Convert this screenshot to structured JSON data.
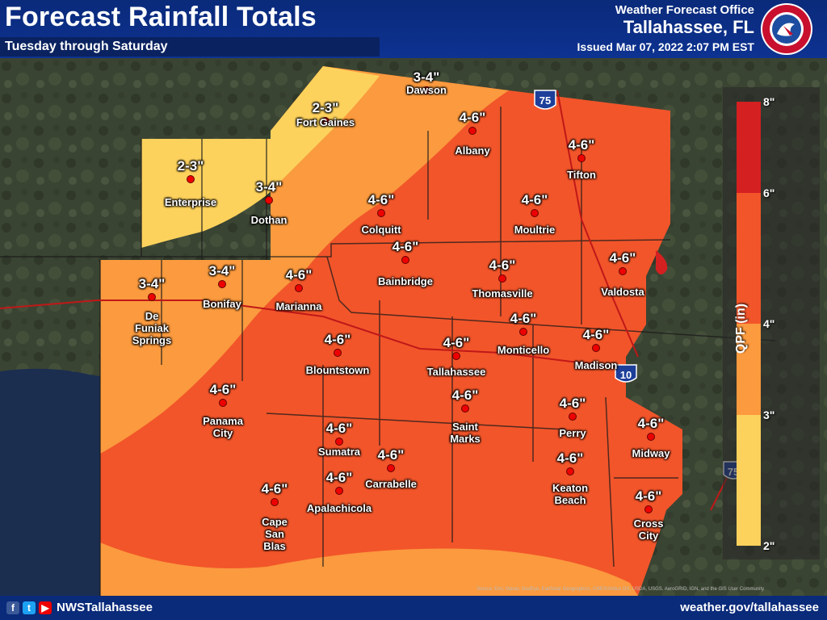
{
  "header": {
    "title": "Forecast Rainfall Totals",
    "subtitle": "Tuesday through Saturday",
    "office": "Weather Forecast Office",
    "city": "Tallahassee, FL",
    "issued": "Issued Mar 07, 2022 2:07 PM EST",
    "logo_text": "NATIONAL WEATHER SERVICE"
  },
  "legend": {
    "title": "QPF (in)",
    "ticks": [
      "8\"",
      "6\"",
      "4\"",
      "3\"",
      "2\""
    ],
    "colors": {
      "2-3": "#fdd25c",
      "3-4": "#fb9a3e",
      "4-6": "#f2552a",
      "6-8": "#d42020"
    }
  },
  "shields": {
    "i75": "75",
    "i10": "10",
    "i75_south": "75"
  },
  "cities": [
    {
      "name": "Dawson",
      "amt": "3-4\""
    },
    {
      "name": "Fort Gaines",
      "amt": "2-3\""
    },
    {
      "name": "Albany",
      "amt": "4-6\""
    },
    {
      "name": "Enterprise",
      "amt": "2-3\""
    },
    {
      "name": "Dothan",
      "amt": "3-4\""
    },
    {
      "name": "Tifton",
      "amt": "4-6\""
    },
    {
      "name": "Colquitt",
      "amt": "4-6\""
    },
    {
      "name": "Moultrie",
      "amt": "4-6\""
    },
    {
      "name": "Bainbridge",
      "amt": "4-6\""
    },
    {
      "name": "Thomasville",
      "amt": "4-6\""
    },
    {
      "name": "Valdosta",
      "amt": "4-6\""
    },
    {
      "name": "De Funiak Springs",
      "amt": "3-4\""
    },
    {
      "name": "Bonifay",
      "amt": "3-4\""
    },
    {
      "name": "Marianna",
      "amt": "4-6\""
    },
    {
      "name": "Monticello",
      "amt": "4-6\""
    },
    {
      "name": "Madison",
      "amt": "4-6\""
    },
    {
      "name": "Blountstown",
      "amt": "4-6\""
    },
    {
      "name": "Tallahassee",
      "amt": "4-6\""
    },
    {
      "name": "Panama City",
      "amt": "4-6\""
    },
    {
      "name": "Saint Marks",
      "amt": "4-6\""
    },
    {
      "name": "Perry",
      "amt": "4-6\""
    },
    {
      "name": "Midway",
      "amt": "4-6\""
    },
    {
      "name": "Sumatra",
      "amt": "4-6\""
    },
    {
      "name": "Carrabelle",
      "amt": "4-6\""
    },
    {
      "name": "Keaton Beach",
      "amt": "4-6\""
    },
    {
      "name": "Apalachicola",
      "amt": "4-6\""
    },
    {
      "name": "Cape San Blas",
      "amt": "4-6\""
    },
    {
      "name": "Cross City",
      "amt": "4-6\""
    }
  ],
  "footer": {
    "handle": "NWSTallahassee",
    "website": "weather.gov/tallahassee",
    "source": "Source: Esri, Maxar, GeoEye, Earthstar Geographics, CNES/Airbus DS, USDA, USGS, AeroGRID, IGN, and the GIS User Community"
  }
}
